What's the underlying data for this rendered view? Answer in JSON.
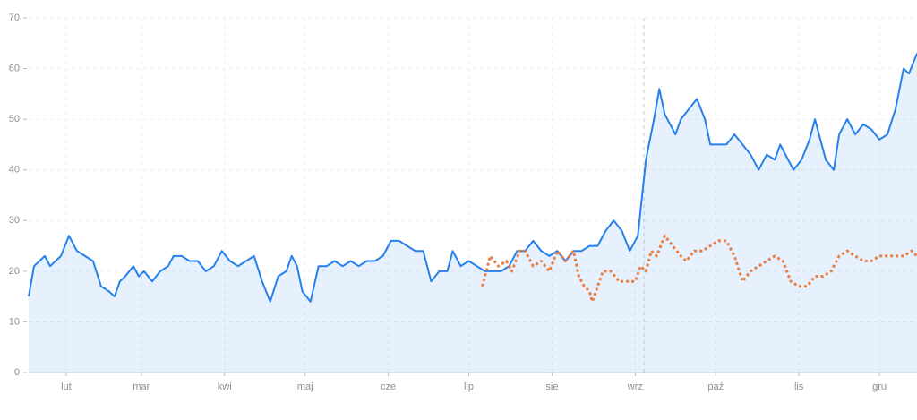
{
  "chart_data": {
    "type": "line",
    "xlim": [
      17,
      348
    ],
    "ylim": [
      0,
      70
    ],
    "yticks": [
      0,
      10,
      20,
      30,
      40,
      50,
      60,
      70
    ],
    "xticks": [
      {
        "value": 31,
        "label": "lut"
      },
      {
        "value": 59,
        "label": "mar"
      },
      {
        "value": 90,
        "label": "kwi"
      },
      {
        "value": 120,
        "label": "maj"
      },
      {
        "value": 151,
        "label": "cze"
      },
      {
        "value": 181,
        "label": "lip"
      },
      {
        "value": 212,
        "label": "sie"
      },
      {
        "value": 243,
        "label": "wrz"
      },
      {
        "value": 273,
        "label": "paź"
      },
      {
        "value": 304,
        "label": "lis"
      },
      {
        "value": 334,
        "label": "gru"
      }
    ],
    "grid": true,
    "series": [
      {
        "color": "#2680eb",
        "area": true,
        "x": [
          17,
          19,
          21,
          23,
          25,
          27,
          29,
          32,
          35,
          38,
          41,
          44,
          47,
          49,
          51,
          53,
          56,
          58,
          60,
          63,
          66,
          69,
          71,
          74,
          77,
          80,
          83,
          86,
          89,
          92,
          95,
          98,
          101,
          104,
          107,
          110,
          113,
          115,
          117,
          119,
          122,
          125,
          128,
          131,
          134,
          137,
          140,
          143,
          146,
          149,
          152,
          155,
          158,
          161,
          164,
          167,
          170,
          173,
          175,
          178,
          181,
          184,
          187,
          190,
          193,
          196,
          199,
          202,
          205,
          208,
          211,
          214,
          217,
          220,
          223,
          226,
          229,
          232,
          235,
          238,
          241,
          244,
          247,
          250,
          252,
          254,
          256,
          258,
          260,
          263,
          266,
          269,
          271,
          274,
          277,
          280,
          283,
          286,
          289,
          292,
          295,
          297,
          300,
          302,
          305,
          308,
          310,
          312,
          314,
          317,
          319,
          322,
          325,
          328,
          331,
          334,
          337,
          340,
          343,
          345,
          348
        ],
        "values": [
          15,
          21,
          22,
          23,
          21,
          22,
          23,
          27,
          24,
          23,
          22,
          17,
          16,
          15,
          18,
          19,
          21,
          19,
          20,
          18,
          20,
          21,
          23,
          23,
          22,
          22,
          20,
          21,
          24,
          22,
          21,
          22,
          23,
          18,
          14,
          19,
          20,
          23,
          21,
          16,
          14,
          21,
          21,
          22,
          21,
          22,
          21,
          22,
          22,
          23,
          26,
          26,
          25,
          24,
          24,
          18,
          20,
          20,
          24,
          21,
          22,
          21,
          20,
          20,
          20,
          21,
          24,
          24,
          26,
          24,
          23,
          24,
          22,
          24,
          24,
          25,
          25,
          28,
          30,
          28,
          24,
          27,
          42,
          50,
          56,
          51,
          49,
          47,
          50,
          52,
          54,
          50,
          45,
          45,
          45,
          47,
          45,
          43,
          40,
          43,
          42,
          45,
          42,
          40,
          42,
          46,
          50,
          46,
          42,
          40,
          47,
          50,
          47,
          49,
          48,
          46,
          47,
          52,
          60,
          59,
          63
        ]
      },
      {
        "color": "#e67e45",
        "dashed": true,
        "x": [
          186,
          189,
          192,
          195,
          197,
          200,
          202,
          205,
          208,
          211,
          214,
          217,
          220,
          222,
          224,
          226,
          227,
          229,
          231,
          234,
          237,
          240,
          243,
          245,
          247,
          249,
          251,
          254,
          257,
          260,
          262,
          265,
          268,
          271,
          274,
          277,
          280,
          283,
          286,
          289,
          292,
          295,
          298,
          301,
          304,
          307,
          310,
          313,
          316,
          319,
          322,
          325,
          328,
          331,
          334,
          337,
          340,
          343,
          346,
          348
        ],
        "values": [
          17,
          23,
          21,
          22,
          20,
          24,
          24,
          21,
          22,
          20,
          24,
          22,
          24,
          19,
          17,
          16,
          14,
          17,
          20,
          20,
          18,
          18,
          18,
          21,
          20,
          24,
          23,
          27,
          25,
          23,
          22,
          24,
          24,
          25,
          26,
          26,
          23,
          18,
          20,
          21,
          22,
          23,
          22,
          18,
          17,
          17,
          19,
          19,
          20,
          23,
          24,
          23,
          22,
          22,
          23,
          23,
          23,
          23,
          24,
          23
        ]
      }
    ]
  }
}
